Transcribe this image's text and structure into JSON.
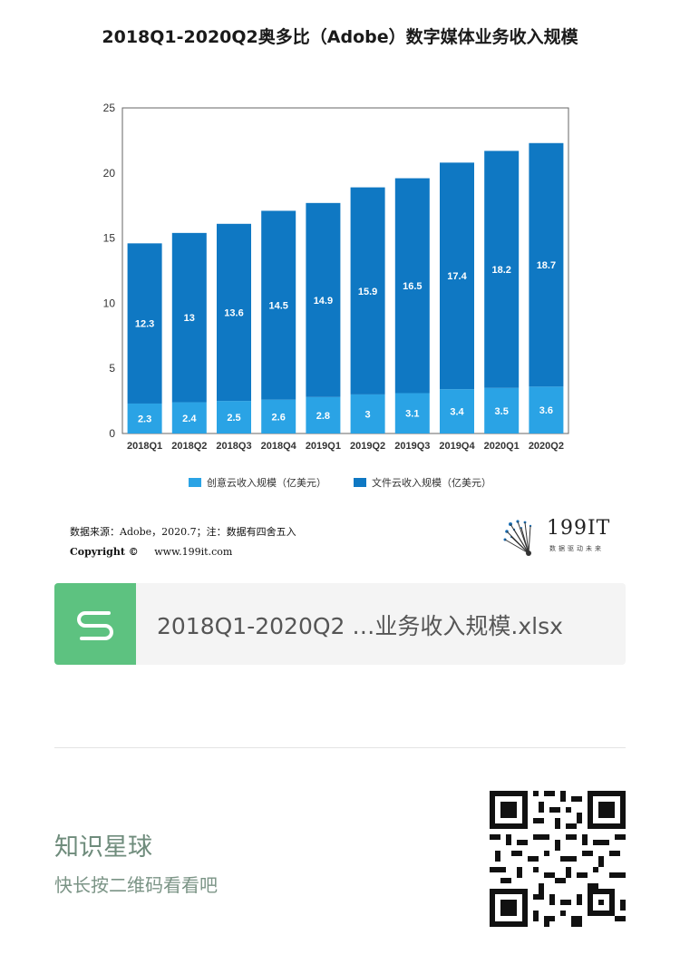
{
  "header": {
    "title": "2018Q1-2020Q2奥多比（Adobe）数字媒体业务收入规模"
  },
  "chart_data": {
    "type": "bar",
    "stacked": true,
    "categories": [
      "2018Q1",
      "2018Q2",
      "2018Q3",
      "2018Q4",
      "2019Q1",
      "2019Q2",
      "2019Q3",
      "2019Q4",
      "2020Q1",
      "2020Q2"
    ],
    "series": [
      {
        "name": "创意云收入规模（亿美元）",
        "color": "#2aa3e5",
        "values": [
          2.3,
          2.4,
          2.5,
          2.6,
          2.8,
          3,
          3.1,
          3.4,
          3.5,
          3.6
        ]
      },
      {
        "name": "文件云收入规模（亿美元）",
        "color": "#0f78c3",
        "values": [
          12.3,
          13,
          13.6,
          14.5,
          14.9,
          15.9,
          16.5,
          17.4,
          18.2,
          18.7
        ]
      }
    ],
    "ylim": [
      0,
      25
    ],
    "yticks": [
      "0",
      "5",
      "10",
      "15",
      "20",
      "25"
    ],
    "grid": false,
    "legend_position": "bottom-center"
  },
  "source": {
    "line1": "数据来源：Adobe，2020.7；注：数据有四舍五入",
    "copyright_label": "Copyright ©",
    "url": "www.199it.com"
  },
  "logo": {
    "text": "199IT",
    "tagline": "数据驱动未来"
  },
  "file_card": {
    "icon": "s-logo-icon",
    "accent": "#5dc280",
    "filename": "2018Q1-2020Q2 …业务收入规模.xlsx"
  },
  "footer": {
    "title": "知识星球",
    "subtitle": "快长按二维码看看吧",
    "qr_icon": "qr-code-icon"
  }
}
